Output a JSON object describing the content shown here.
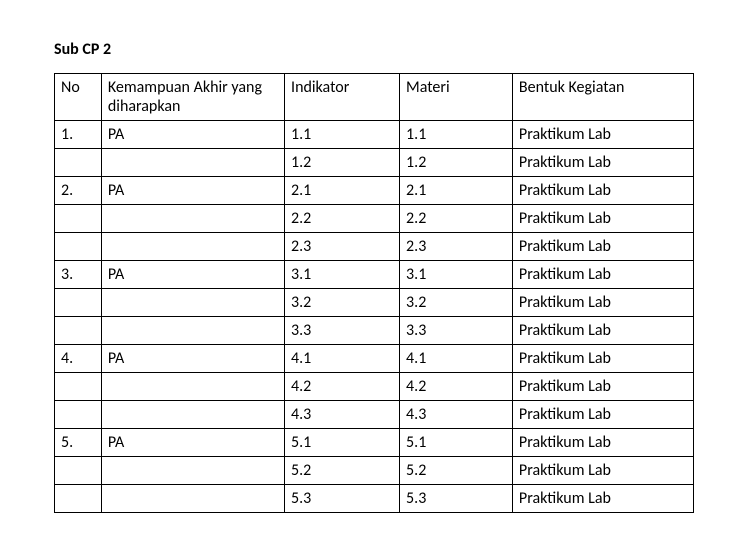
{
  "title": "Sub CP 2",
  "columns": {
    "no": "No",
    "ka": "Kemampuan Akhir yang diharapkan",
    "ind": "Indikator",
    "mat": "Materi",
    "bk": "Bentuk Kegiatan"
  },
  "rows": [
    {
      "no": "1.",
      "ka": "PA",
      "ind": "1.1",
      "mat": "1.1",
      "bk": "Praktikum Lab"
    },
    {
      "no": "",
      "ka": "",
      "ind": "1.2",
      "mat": "1.2",
      "bk": "Praktikum Lab"
    },
    {
      "no": "2.",
      "ka": "PA",
      "ind": "2.1",
      "mat": "2.1",
      "bk": "Praktikum Lab"
    },
    {
      "no": "",
      "ka": "",
      "ind": "2.2",
      "mat": "2.2",
      "bk": "Praktikum Lab"
    },
    {
      "no": "",
      "ka": "",
      "ind": "2.3",
      "mat": "2.3",
      "bk": "Praktikum Lab"
    },
    {
      "no": "3.",
      "ka": "PA",
      "ind": "3.1",
      "mat": "3.1",
      "bk": "Praktikum Lab"
    },
    {
      "no": "",
      "ka": "",
      "ind": "3.2",
      "mat": "3.2",
      "bk": "Praktikum Lab"
    },
    {
      "no": "",
      "ka": "",
      "ind": "3.3",
      "mat": "3.3",
      "bk": "Praktikum Lab"
    },
    {
      "no": "4.",
      "ka": "PA",
      "ind": "4.1",
      "mat": "4.1",
      "bk": "Praktikum Lab"
    },
    {
      "no": "",
      "ka": "",
      "ind": "4.2",
      "mat": "4.2",
      "bk": "Praktikum Lab"
    },
    {
      "no": "",
      "ka": "",
      "ind": "4.3",
      "mat": "4.3",
      "bk": "Praktikum Lab"
    },
    {
      "no": "5.",
      "ka": "PA",
      "ind": "5.1",
      "mat": "5.1",
      "bk": "Praktikum Lab"
    },
    {
      "no": "",
      "ka": "",
      "ind": "5.2",
      "mat": "5.2",
      "bk": "Praktikum Lab"
    },
    {
      "no": "",
      "ka": "",
      "ind": "5.3",
      "mat": "5.3",
      "bk": "Praktikum Lab"
    }
  ],
  "style": {
    "border_color": "#000000",
    "background_color": "#ffffff",
    "font_size_pt": 12,
    "title_font_weight": "bold"
  }
}
